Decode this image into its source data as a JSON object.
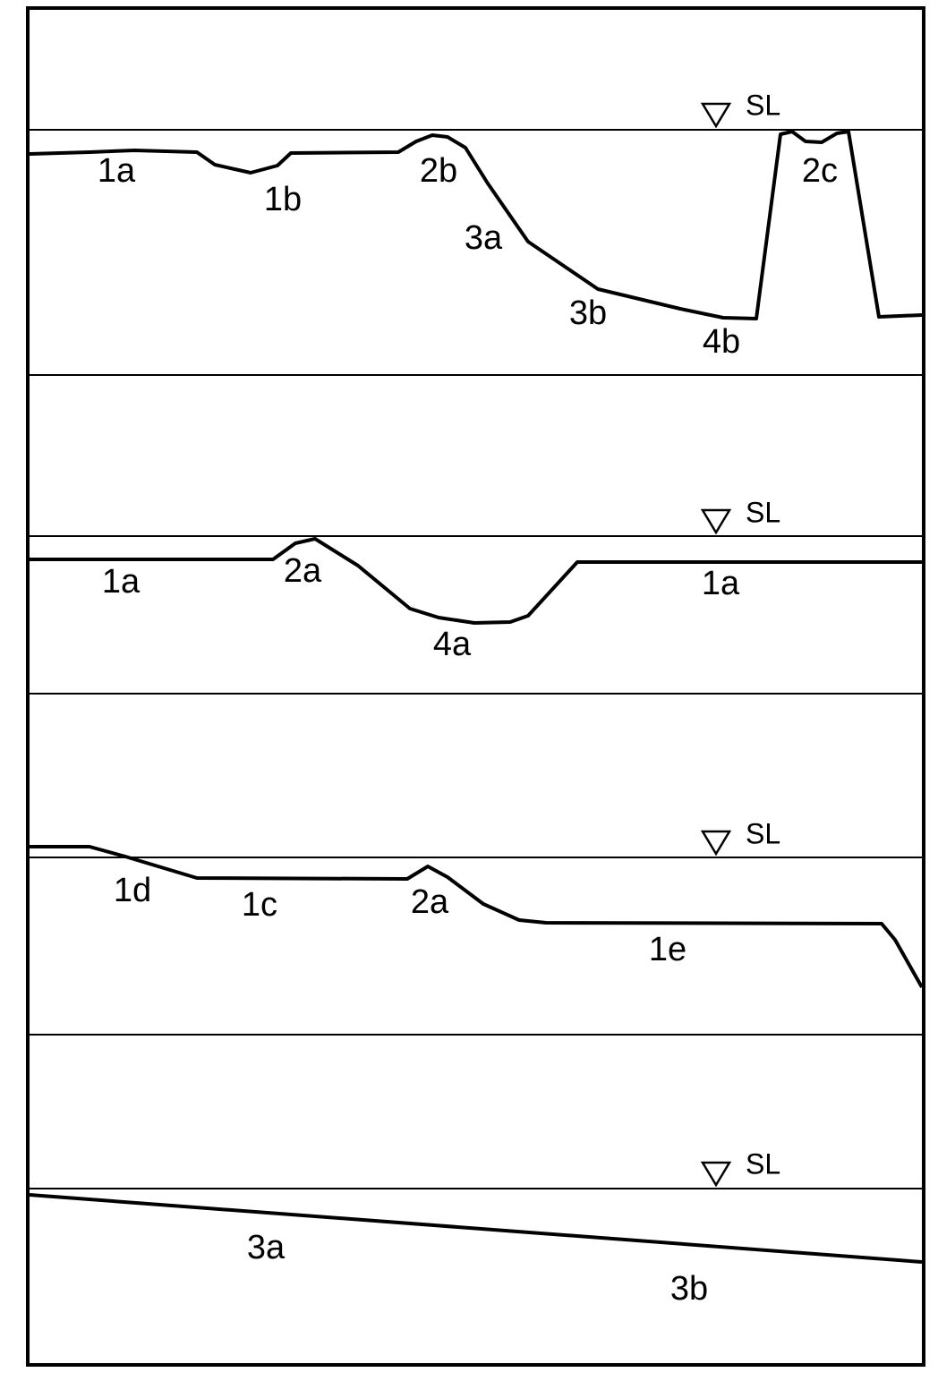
{
  "panels": [
    {
      "sea_level": "SL",
      "labels": [
        "1a",
        "1b",
        "2b",
        "3a",
        "3b",
        "4b",
        "2c"
      ]
    },
    {
      "sea_level": "SL",
      "labels": [
        "1a",
        "2a",
        "4a",
        "1a"
      ]
    },
    {
      "sea_level": "SL",
      "labels": [
        "1d",
        "1c",
        "2a",
        "1e"
      ]
    },
    {
      "sea_level": "SL",
      "labels": [
        "3a",
        "3b"
      ]
    }
  ]
}
